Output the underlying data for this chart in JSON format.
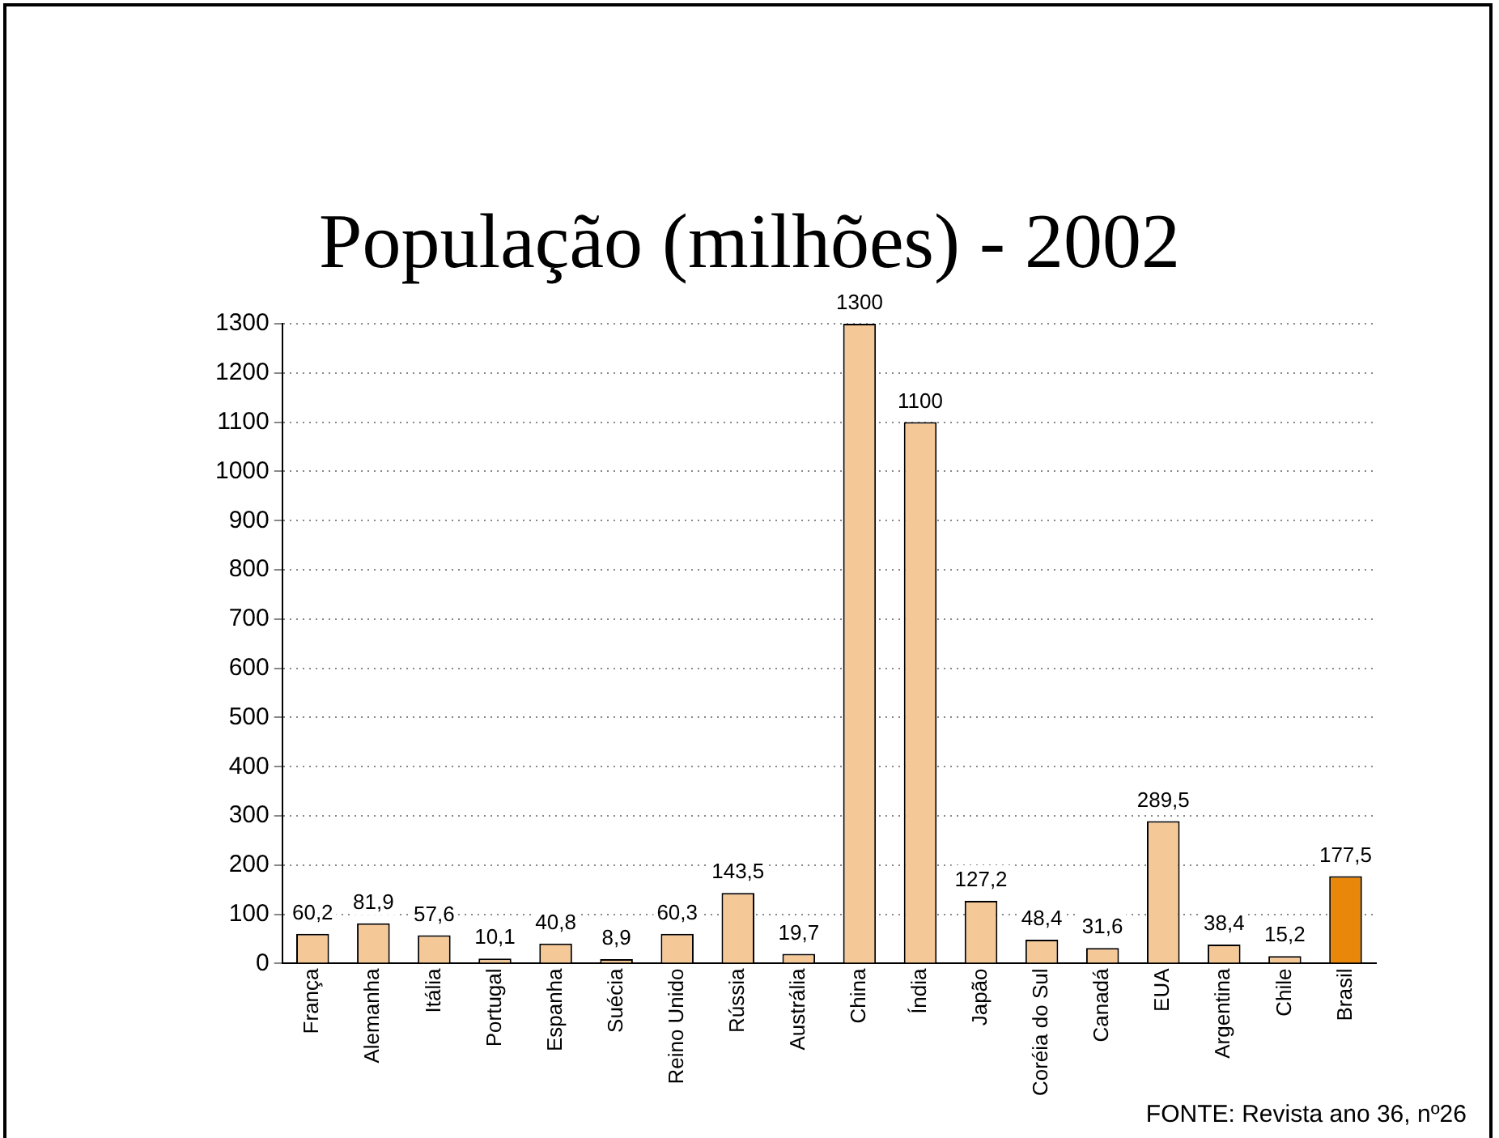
{
  "chart_data": {
    "type": "bar",
    "title": "População (milhões) - 2002",
    "categories": [
      "França",
      "Alemanha",
      "Itália",
      "Portugal",
      "Espanha",
      "Suécia",
      "Reino Unido",
      "Rússia",
      "Austrália",
      "China",
      "Índia",
      "Japão",
      "Coréia do Sul",
      "Canadá",
      "EUA",
      "Argentina",
      "Chile",
      "Brasil"
    ],
    "values": [
      60.2,
      81.9,
      57.6,
      10.1,
      40.8,
      8.9,
      60.3,
      143.5,
      19.7,
      1300,
      1100,
      127.2,
      48.4,
      31.6,
      289.5,
      38.4,
      15.2,
      177.5
    ],
    "value_labels": [
      "60,2",
      "81,9",
      "57,6",
      "10,1",
      "40,8",
      "8,9",
      "60,3",
      "143,5",
      "19,7",
      "1300",
      "1100",
      "127,2",
      "48,4",
      "31,6",
      "289,5",
      "38,4",
      "15,2",
      "177,5"
    ],
    "colors": [
      "#f5c898",
      "#f5c898",
      "#f5c898",
      "#f5c898",
      "#f5c898",
      "#f5c898",
      "#f5c898",
      "#f5c898",
      "#f5c898",
      "#f5c898",
      "#f5c898",
      "#f5c898",
      "#f5c898",
      "#f5c898",
      "#f5c898",
      "#f5c898",
      "#f5c898",
      "#e8870a"
    ],
    "ylim": [
      0,
      1300
    ],
    "yticks": [
      0,
      100,
      200,
      300,
      400,
      500,
      600,
      700,
      800,
      900,
      1000,
      1100,
      1200,
      1300
    ],
    "grid": "y",
    "legend": false,
    "annotations": [
      "FONTE: Revista ano 36, nº26"
    ]
  }
}
